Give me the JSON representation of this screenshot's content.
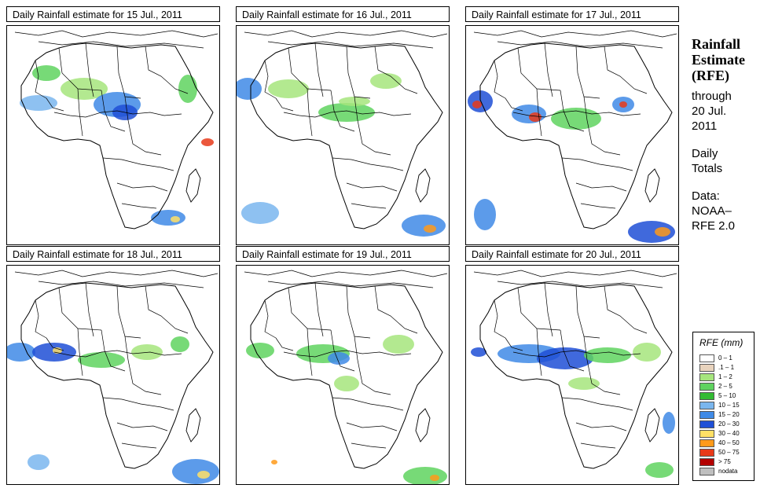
{
  "panels": [
    {
      "title": "Daily Rainfall estimate for  15 Jul., 2011"
    },
    {
      "title": "Daily Rainfall estimate for  16 Jul., 2011"
    },
    {
      "title": "Daily Rainfall estimate for  17 Jul., 2011"
    },
    {
      "title": "Daily Rainfall estimate for  18 Jul., 2011"
    },
    {
      "title": "Daily Rainfall estimate for  19 Jul., 2011"
    },
    {
      "title": "Daily Rainfall estimate for  20 Jul., 2011"
    }
  ],
  "sidebar": {
    "heading_1": "Rainfall",
    "heading_2": "Estimate",
    "heading_3": "(RFE)",
    "through": "through",
    "date_1": "20 Jul.",
    "date_2": "2011",
    "totals_1": "Daily",
    "totals_2": "Totals",
    "data_label": "Data:",
    "source_1": "NOAA–",
    "source_2": "RFE 2.0"
  },
  "legend": {
    "title": "RFE (mm)",
    "items": [
      {
        "label": "0 – 1",
        "color": "#ffffff"
      },
      {
        "label": ".1 – 1",
        "color": "#e8d3bd"
      },
      {
        "label": "1 – 2",
        "color": "#a6e57d"
      },
      {
        "label": "2 – 5",
        "color": "#5fd35f"
      },
      {
        "label": "5 – 10",
        "color": "#33bb33"
      },
      {
        "label": "10 – 15",
        "color": "#7ab6ee"
      },
      {
        "label": "15 – 20",
        "color": "#3f8ae6"
      },
      {
        "label": "20 – 30",
        "color": "#1f4fd6"
      },
      {
        "label": "30 – 40",
        "color": "#ffe066"
      },
      {
        "label": "40 – 50",
        "color": "#ff9a1a"
      },
      {
        "label": "50 – 75",
        "color": "#e83a1a"
      },
      {
        "label": "> 75",
        "color": "#b30000"
      },
      {
        "label": "nodata",
        "color": "#bfbfbf"
      }
    ]
  }
}
